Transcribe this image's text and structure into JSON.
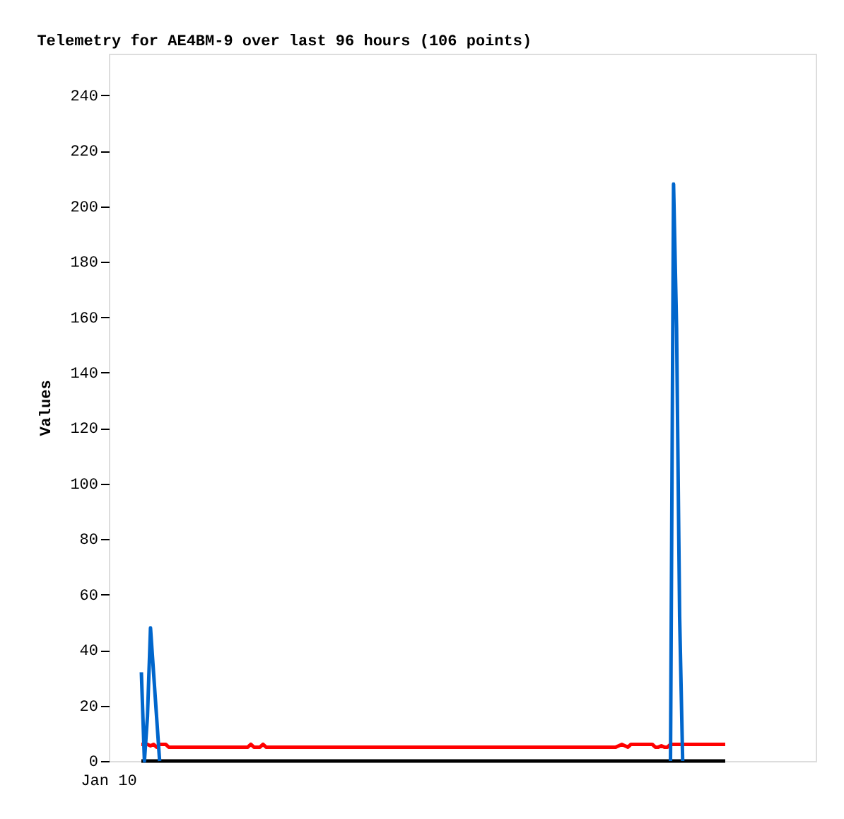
{
  "chart_data": {
    "type": "line",
    "title": "Telemetry for AE4BM-9 over last 96 hours (106 points)",
    "ylabel": "Values",
    "annotations": [
      "Jan 10"
    ],
    "categories": [
      null,
      null,
      null,
      null,
      null,
      null,
      null,
      null,
      null,
      null,
      null,
      null,
      null,
      null,
      null,
      null,
      null,
      null,
      null,
      null,
      null,
      null,
      null,
      null,
      null,
      null,
      null,
      null,
      null,
      null,
      null,
      null,
      null,
      null,
      null,
      null,
      null,
      null,
      null,
      null,
      null,
      null,
      null,
      null,
      null,
      null,
      null,
      null,
      null,
      null,
      null,
      null,
      null,
      null,
      null,
      null,
      null,
      null,
      null,
      null,
      null,
      null,
      null,
      null,
      null,
      null,
      null,
      null,
      null,
      null,
      null,
      null,
      null,
      null,
      null,
      null,
      null,
      null,
      null,
      null,
      null,
      null,
      null,
      null,
      null,
      null,
      null,
      null,
      null,
      null,
      null,
      null,
      null,
      null,
      null,
      null,
      null,
      null,
      null,
      null,
      null,
      null,
      null,
      null,
      null,
      null,
      null,
      null,
      null,
      null,
      null,
      null,
      null,
      null,
      null,
      null,
      null,
      null,
      null,
      null,
      null,
      null,
      null,
      null,
      null,
      null,
      null,
      null,
      null,
      null,
      null,
      null,
      null,
      null,
      null,
      null,
      null,
      null,
      null,
      null,
      null,
      null,
      null,
      null,
      null,
      null,
      null,
      null,
      null,
      null,
      null,
      null,
      null,
      null,
      null,
      null,
      null,
      null,
      null,
      null,
      null,
      null,
      null,
      null,
      null,
      null,
      null,
      null,
      null,
      null,
      null,
      null,
      null,
      null,
      null,
      null,
      null,
      null,
      null,
      null,
      null,
      null,
      null,
      null,
      null,
      null,
      null,
      null,
      null,
      null,
      null,
      null,
      null
    ],
    "ylim": [
      0,
      255
    ],
    "yticks": [
      0,
      20,
      40,
      60,
      80,
      100,
      120,
      140,
      160,
      180,
      200,
      220,
      240
    ],
    "grid": false,
    "legend": false,
    "marker": "none",
    "line_style": "solid",
    "series": [
      {
        "color": "#000000",
        "values": [
          0,
          0,
          0,
          0,
          0,
          0,
          0,
          0,
          0,
          0,
          0,
          0,
          0,
          0,
          0,
          0,
          0,
          0,
          0,
          0,
          0,
          0,
          0,
          0,
          0,
          0,
          0,
          0,
          0,
          0,
          0,
          0,
          0,
          0,
          0,
          0,
          0,
          0,
          0,
          0,
          0,
          0,
          0,
          0,
          0,
          0,
          0,
          0,
          0,
          0,
          0,
          0,
          0,
          0,
          0,
          0,
          0,
          0,
          0,
          0,
          0,
          0,
          0,
          0,
          0,
          0,
          0,
          0,
          0,
          0,
          0,
          0,
          0,
          0,
          0,
          0,
          0,
          0,
          0,
          0,
          0,
          0,
          0,
          0,
          0,
          0,
          0,
          0,
          0,
          0,
          0,
          0,
          0,
          0,
          0,
          0,
          0,
          0,
          0,
          0,
          0,
          0,
          0,
          0,
          0,
          0,
          0,
          0,
          0,
          0,
          0,
          0,
          0,
          0,
          0,
          0,
          0,
          0,
          0,
          0,
          0,
          0,
          0,
          0,
          0,
          0,
          0,
          0,
          0,
          0,
          0,
          0,
          0,
          0,
          0,
          0,
          0,
          0,
          0,
          0,
          0,
          0,
          0,
          0,
          0,
          0,
          0,
          0,
          0,
          0,
          0,
          0,
          0,
          0,
          0,
          0,
          0,
          0,
          0,
          0,
          0,
          0,
          0,
          0,
          0,
          0,
          0,
          0,
          0,
          0,
          0,
          0,
          0,
          0,
          0,
          0,
          0,
          0,
          0,
          0,
          0,
          0,
          0,
          0,
          0,
          0,
          0,
          0,
          0,
          0,
          0,
          0,
          0
        ]
      },
      {
        "color": "#ff0000",
        "values": [
          6,
          6,
          6,
          5.5,
          6,
          5,
          6,
          6,
          6,
          5,
          5,
          5,
          5,
          5,
          5,
          5,
          5,
          5,
          5,
          5,
          5,
          5,
          5,
          5,
          5,
          5,
          5,
          5,
          5,
          5,
          5,
          5,
          5,
          5,
          5,
          5,
          6,
          5,
          5,
          5,
          6,
          5,
          5,
          5,
          5,
          5,
          5,
          5,
          5,
          5,
          5,
          5,
          5,
          5,
          5,
          5,
          5,
          5,
          5,
          5,
          5,
          5,
          5,
          5,
          5,
          5,
          5,
          5,
          5,
          5,
          5,
          5,
          5,
          5,
          5,
          5,
          5,
          5,
          5,
          5,
          5,
          5,
          5,
          5,
          5,
          5,
          5,
          5,
          5,
          5,
          5,
          5,
          5,
          5,
          5,
          5,
          5,
          5,
          5,
          5,
          5,
          5,
          5,
          5,
          5,
          5,
          5,
          5,
          5,
          5,
          5,
          5,
          5,
          5,
          5,
          5,
          5,
          5,
          5,
          5,
          5,
          5,
          5,
          5,
          5,
          5,
          5,
          5,
          5,
          5,
          5,
          5,
          5,
          5,
          5,
          5,
          5,
          5,
          5,
          5,
          5,
          5,
          5,
          5,
          5,
          5,
          5,
          5,
          5,
          5,
          5,
          5,
          5,
          5,
          5,
          5,
          5,
          5.5,
          6,
          5.5,
          5,
          6,
          6,
          6,
          6,
          6,
          6,
          6,
          6,
          5,
          5,
          5.5,
          5,
          5,
          6,
          6,
          6,
          6,
          6,
          6,
          6,
          6,
          6,
          6,
          6,
          6,
          6,
          6,
          6,
          6,
          6,
          6,
          6
        ]
      },
      {
        "color": "#0066cc",
        "values": [
          32,
          0,
          16,
          48,
          32,
          16,
          0,
          null,
          null,
          null,
          null,
          null,
          null,
          null,
          null,
          null,
          null,
          null,
          null,
          null,
          null,
          null,
          null,
          null,
          null,
          null,
          null,
          null,
          null,
          null,
          null,
          null,
          null,
          null,
          null,
          null,
          null,
          null,
          null,
          null,
          null,
          null,
          null,
          null,
          null,
          null,
          null,
          null,
          null,
          null,
          null,
          null,
          null,
          null,
          null,
          null,
          null,
          null,
          null,
          null,
          null,
          null,
          null,
          null,
          null,
          null,
          null,
          null,
          null,
          null,
          null,
          null,
          null,
          null,
          null,
          null,
          null,
          null,
          null,
          null,
          null,
          null,
          null,
          null,
          null,
          null,
          null,
          null,
          null,
          null,
          null,
          null,
          null,
          null,
          null,
          null,
          null,
          null,
          null,
          null,
          null,
          null,
          null,
          null,
          null,
          null,
          null,
          null,
          null,
          null,
          null,
          null,
          null,
          null,
          null,
          null,
          null,
          null,
          null,
          null,
          null,
          null,
          null,
          null,
          null,
          null,
          null,
          null,
          null,
          null,
          null,
          null,
          null,
          null,
          null,
          null,
          null,
          null,
          null,
          null,
          null,
          null,
          null,
          null,
          null,
          null,
          null,
          null,
          null,
          null,
          null,
          null,
          null,
          null,
          null,
          null,
          null,
          null,
          null,
          null,
          null,
          null,
          null,
          null,
          null,
          null,
          null,
          null,
          null,
          null,
          null,
          null,
          null,
          null,
          0,
          208,
          156,
          52,
          0,
          null,
          null,
          null,
          null,
          null,
          null,
          null,
          null,
          null,
          null,
          null,
          null,
          null,
          null
        ]
      }
    ]
  }
}
